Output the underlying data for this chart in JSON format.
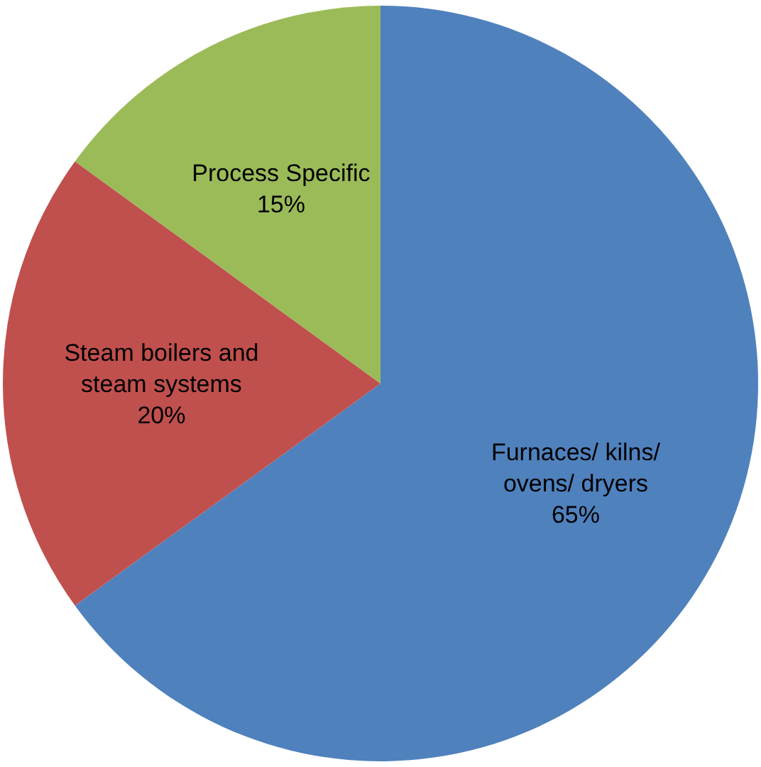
{
  "chart_data": {
    "type": "pie",
    "categories": [
      "Furnaces/ kilns/ ovens/ dryers",
      "Steam boilers and steam systems",
      "Process Specific"
    ],
    "values": [
      65,
      20,
      15
    ],
    "colors": [
      "#4f81bd",
      "#c0504d",
      "#9bbb59"
    ],
    "value_labels": [
      "65%",
      "20%",
      "15%"
    ],
    "legend": false
  }
}
